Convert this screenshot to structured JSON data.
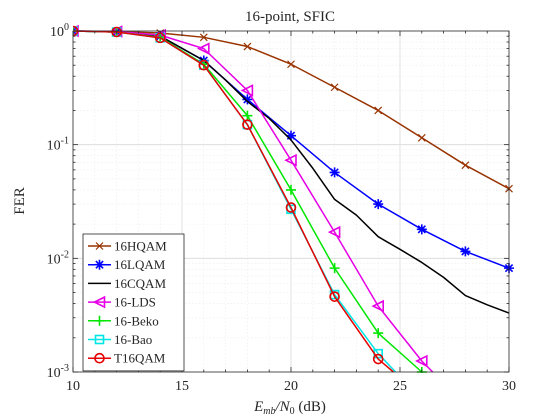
{
  "chart_data": {
    "type": "line",
    "title": "16-point, SFIC",
    "xlabel": "E_mb/N_0 (dB)",
    "xlabel_parts": {
      "E": "E",
      "E_sub": "mb",
      "slash": "/N",
      "N_sub": "0",
      "unit": " (dB)"
    },
    "ylabel": "FER",
    "xlim": [
      10,
      30
    ],
    "ylim": [
      0.001,
      1
    ],
    "yscale": "log",
    "grid": "on (major and minor)",
    "legend_position": "bottom-left",
    "x_ticks": [
      10,
      15,
      20,
      25,
      30
    ],
    "x_tick_labels": [
      "10",
      "15",
      "20",
      "25",
      "30"
    ],
    "y_ticks": [
      {
        "value": 1,
        "base": "10",
        "exp": "0"
      },
      {
        "value": 0.1,
        "base": "10",
        "exp": "-1"
      },
      {
        "value": 0.01,
        "base": "10",
        "exp": "-2"
      },
      {
        "value": 0.001,
        "base": "10",
        "exp": "-3"
      }
    ],
    "series": [
      {
        "name": "16HQAM",
        "color": "#993300",
        "marker": "x",
        "x": [
          10,
          12,
          14,
          16,
          18,
          20,
          22,
          24,
          26,
          28,
          30
        ],
        "y": [
          1,
          0.99,
          0.96,
          0.88,
          0.73,
          0.51,
          0.32,
          0.2,
          0.115,
          0.066,
          0.041
        ]
      },
      {
        "name": "16LQAM",
        "color": "#0000ff",
        "marker": "asterisk",
        "x": [
          10,
          12,
          14,
          16,
          18,
          20,
          22,
          24,
          26,
          28,
          30
        ],
        "y": [
          1,
          0.98,
          0.9,
          0.55,
          0.25,
          0.12,
          0.057,
          0.03,
          0.018,
          0.0115,
          0.0082
        ]
      },
      {
        "name": "16CQAM",
        "color": "#000000",
        "marker": "none",
        "x": [
          10,
          12,
          14,
          16,
          17,
          18,
          19,
          20,
          21,
          22,
          23,
          24,
          25,
          26,
          27,
          28,
          29,
          30
        ],
        "y": [
          1,
          0.98,
          0.9,
          0.55,
          0.37,
          0.24,
          0.17,
          0.11,
          0.062,
          0.033,
          0.024,
          0.0155,
          0.012,
          0.0092,
          0.0068,
          0.0047,
          0.0039,
          0.0033
        ]
      },
      {
        "name": "16-LDS",
        "color": "#e600e6",
        "marker": "triangle-left",
        "x": [
          10,
          12,
          14,
          16,
          18,
          20,
          22,
          24,
          26,
          26.5
        ],
        "y": [
          1,
          0.99,
          0.92,
          0.7,
          0.3,
          0.073,
          0.017,
          0.0038,
          0.00125,
          0.001
        ]
      },
      {
        "name": "16-Beko",
        "color": "#00e600",
        "marker": "plus",
        "x": [
          10,
          12,
          14,
          16,
          18,
          20,
          22,
          24,
          26
        ],
        "y": [
          1,
          0.98,
          0.88,
          0.51,
          0.18,
          0.04,
          0.0082,
          0.0022,
          0.001
        ]
      },
      {
        "name": "16-Bao",
        "color": "#00e6e6",
        "marker": "square",
        "x": [
          10,
          12,
          14,
          16,
          18,
          20,
          22,
          24,
          24.8
        ],
        "y": [
          1,
          0.98,
          0.87,
          0.5,
          0.15,
          0.027,
          0.0048,
          0.00145,
          0.001
        ]
      },
      {
        "name": "T16QAM",
        "color": "#e60000",
        "marker": "circle",
        "x": [
          10,
          12,
          14,
          16,
          18,
          20,
          22,
          24,
          24.7
        ],
        "y": [
          1,
          0.98,
          0.87,
          0.5,
          0.15,
          0.028,
          0.0046,
          0.0013,
          0.001
        ]
      }
    ]
  }
}
